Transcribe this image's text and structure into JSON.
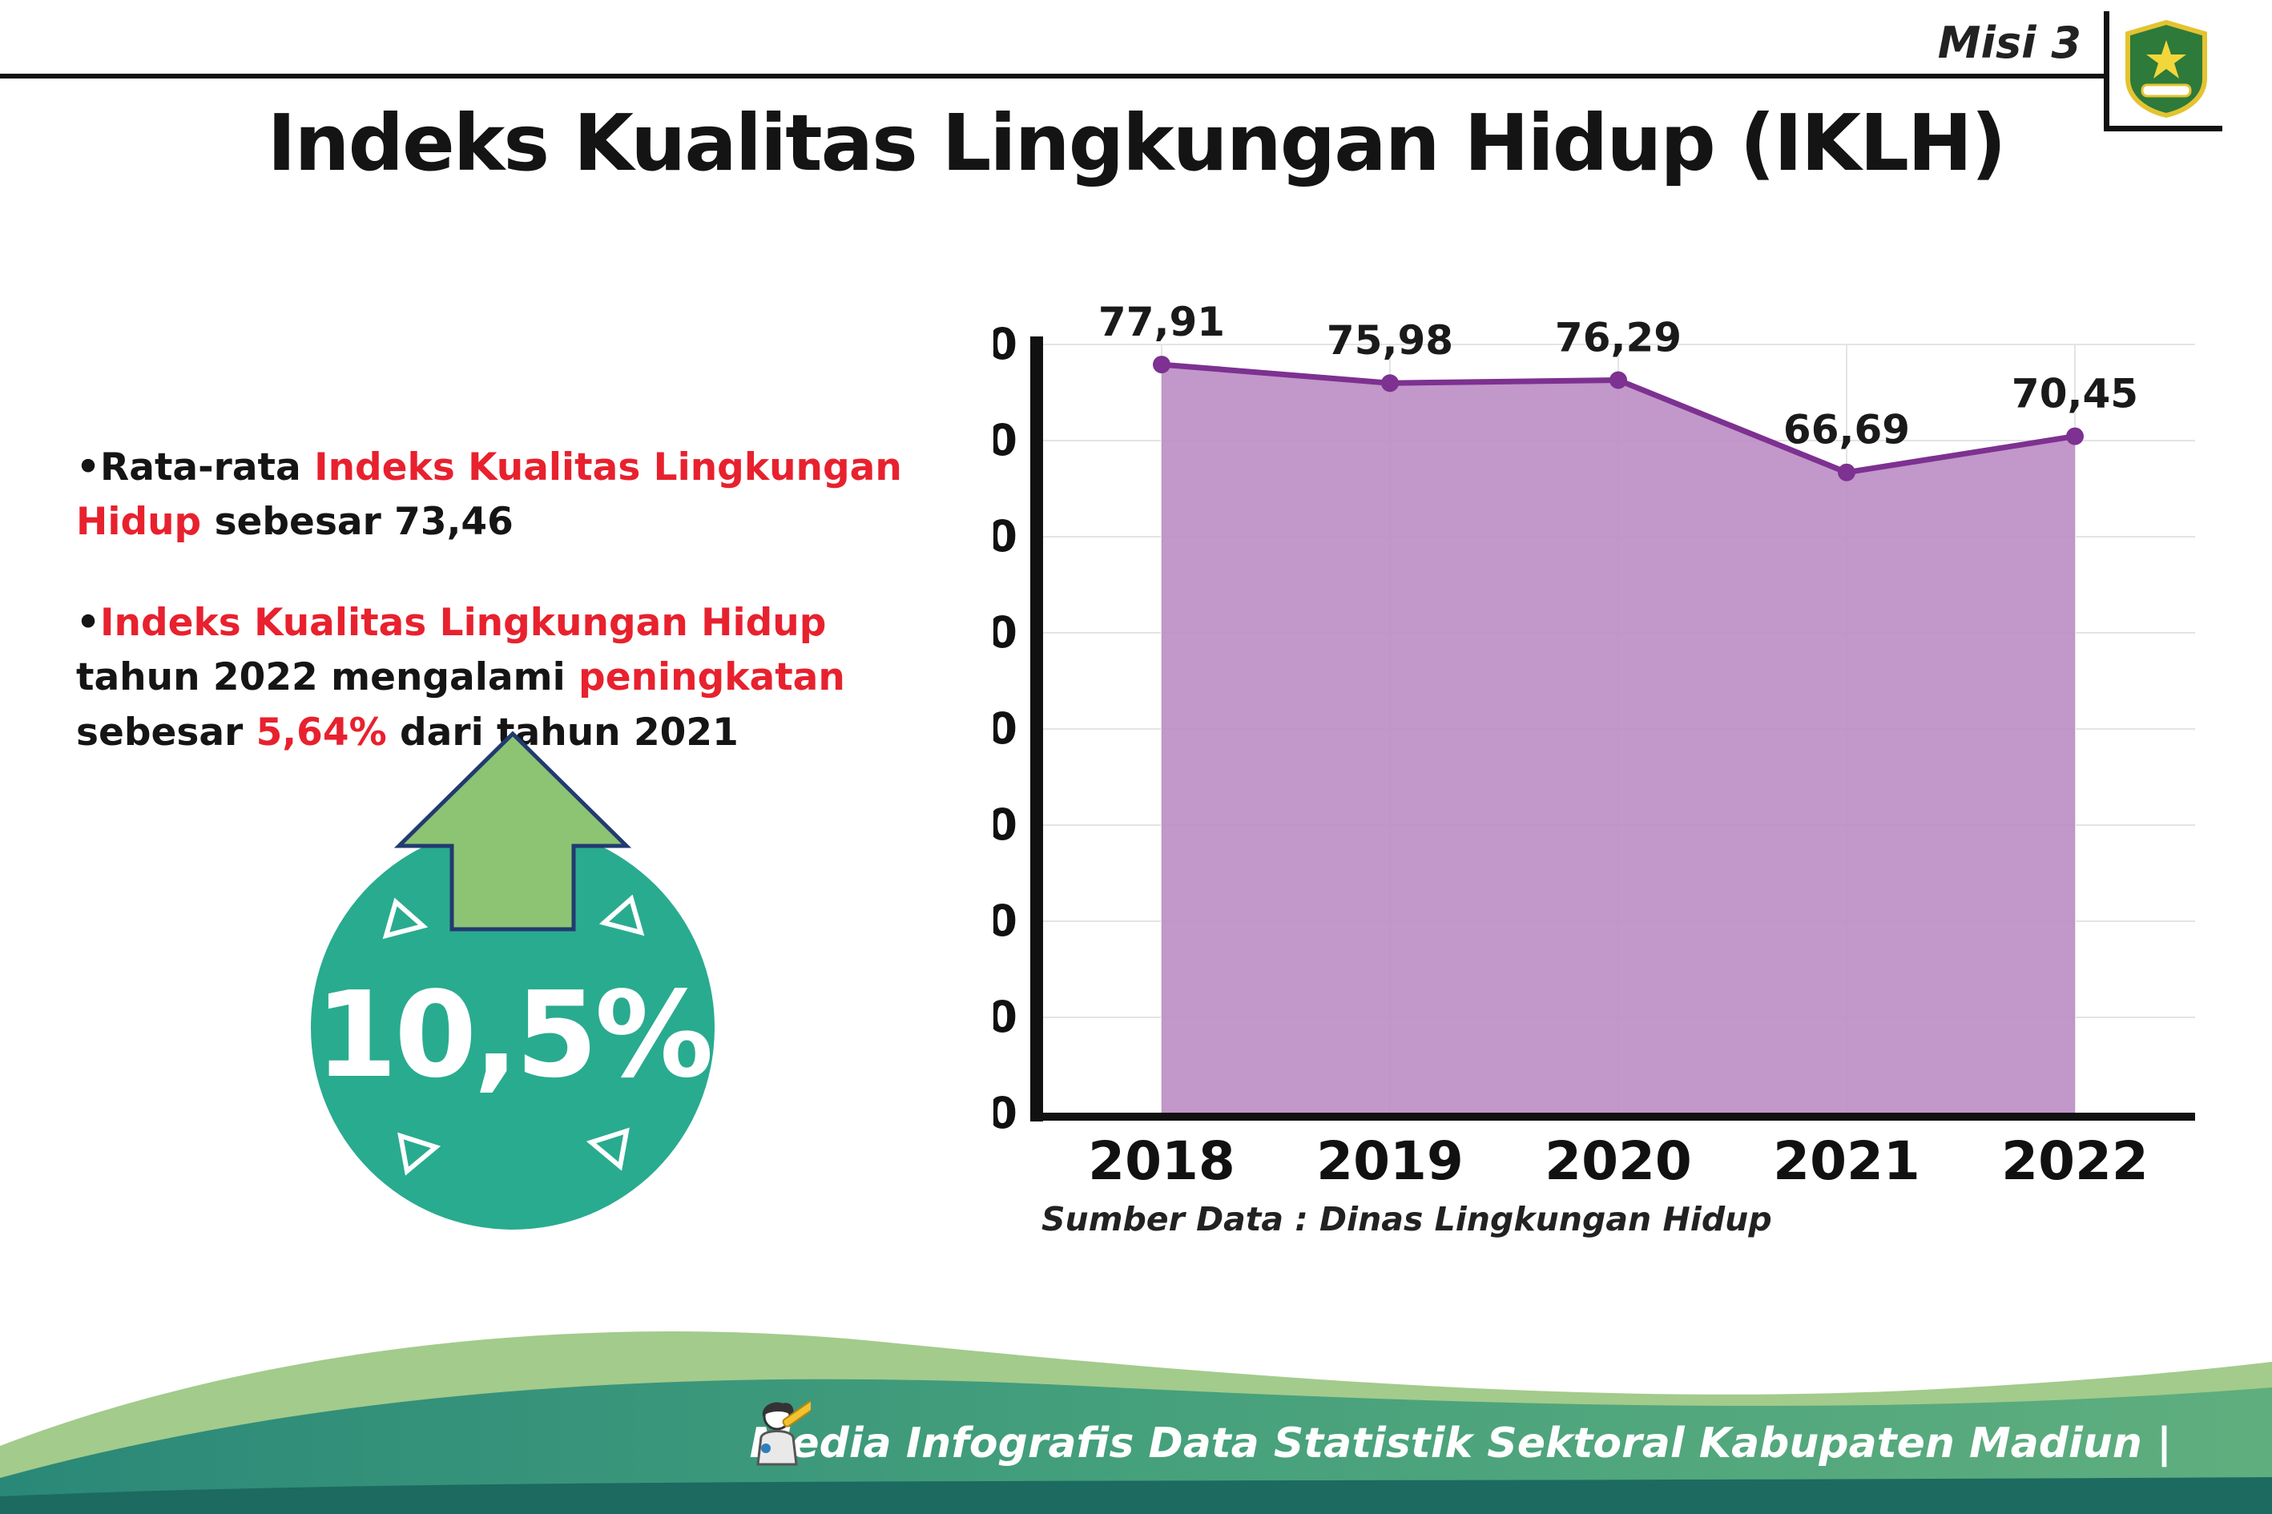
{
  "header": {
    "misi": "Misi 3",
    "title": "Indeks Kualitas Lingkungan Hidup (IKLH)"
  },
  "bullets": {
    "bullet_char": "•",
    "b1_pre": "Rata-rata ",
    "b1_red": "Indeks Kualitas Lingkungan Hidup",
    "b1_post": " sebesar 73,46",
    "b2_red1": "Indeks Kualitas Lingkungan Hidup",
    "b2_mid1": " tahun 2022 mengalami ",
    "b2_red2": "peningkatan",
    "b2_mid2": " sebesar ",
    "b2_red3": "5,64%",
    "b2_post": " dari tahun 2021"
  },
  "badge": {
    "value": "10,5%"
  },
  "chart_data": {
    "type": "area",
    "title": "Indeks Kualitas Lingkungan Hidup (IKLH)",
    "categories": [
      "2018",
      "2019",
      "2020",
      "2021",
      "2022"
    ],
    "values": [
      77.91,
      75.98,
      76.29,
      66.69,
      70.45
    ],
    "value_labels": [
      "77,91",
      "75,98",
      "76,29",
      "66,69",
      "70,45"
    ],
    "xlabel": "",
    "ylabel": "",
    "ylim": [
      0,
      80
    ],
    "ytick_step": 10,
    "grid": true,
    "fill_color": "#bd8fc6",
    "line_color": "#7d3190",
    "source": "Sumber Data : Dinas Lingkungan Hidup"
  },
  "footer": {
    "credit": "Media Infografis Data Statistik Sektoral Kabupaten Madiun |"
  }
}
